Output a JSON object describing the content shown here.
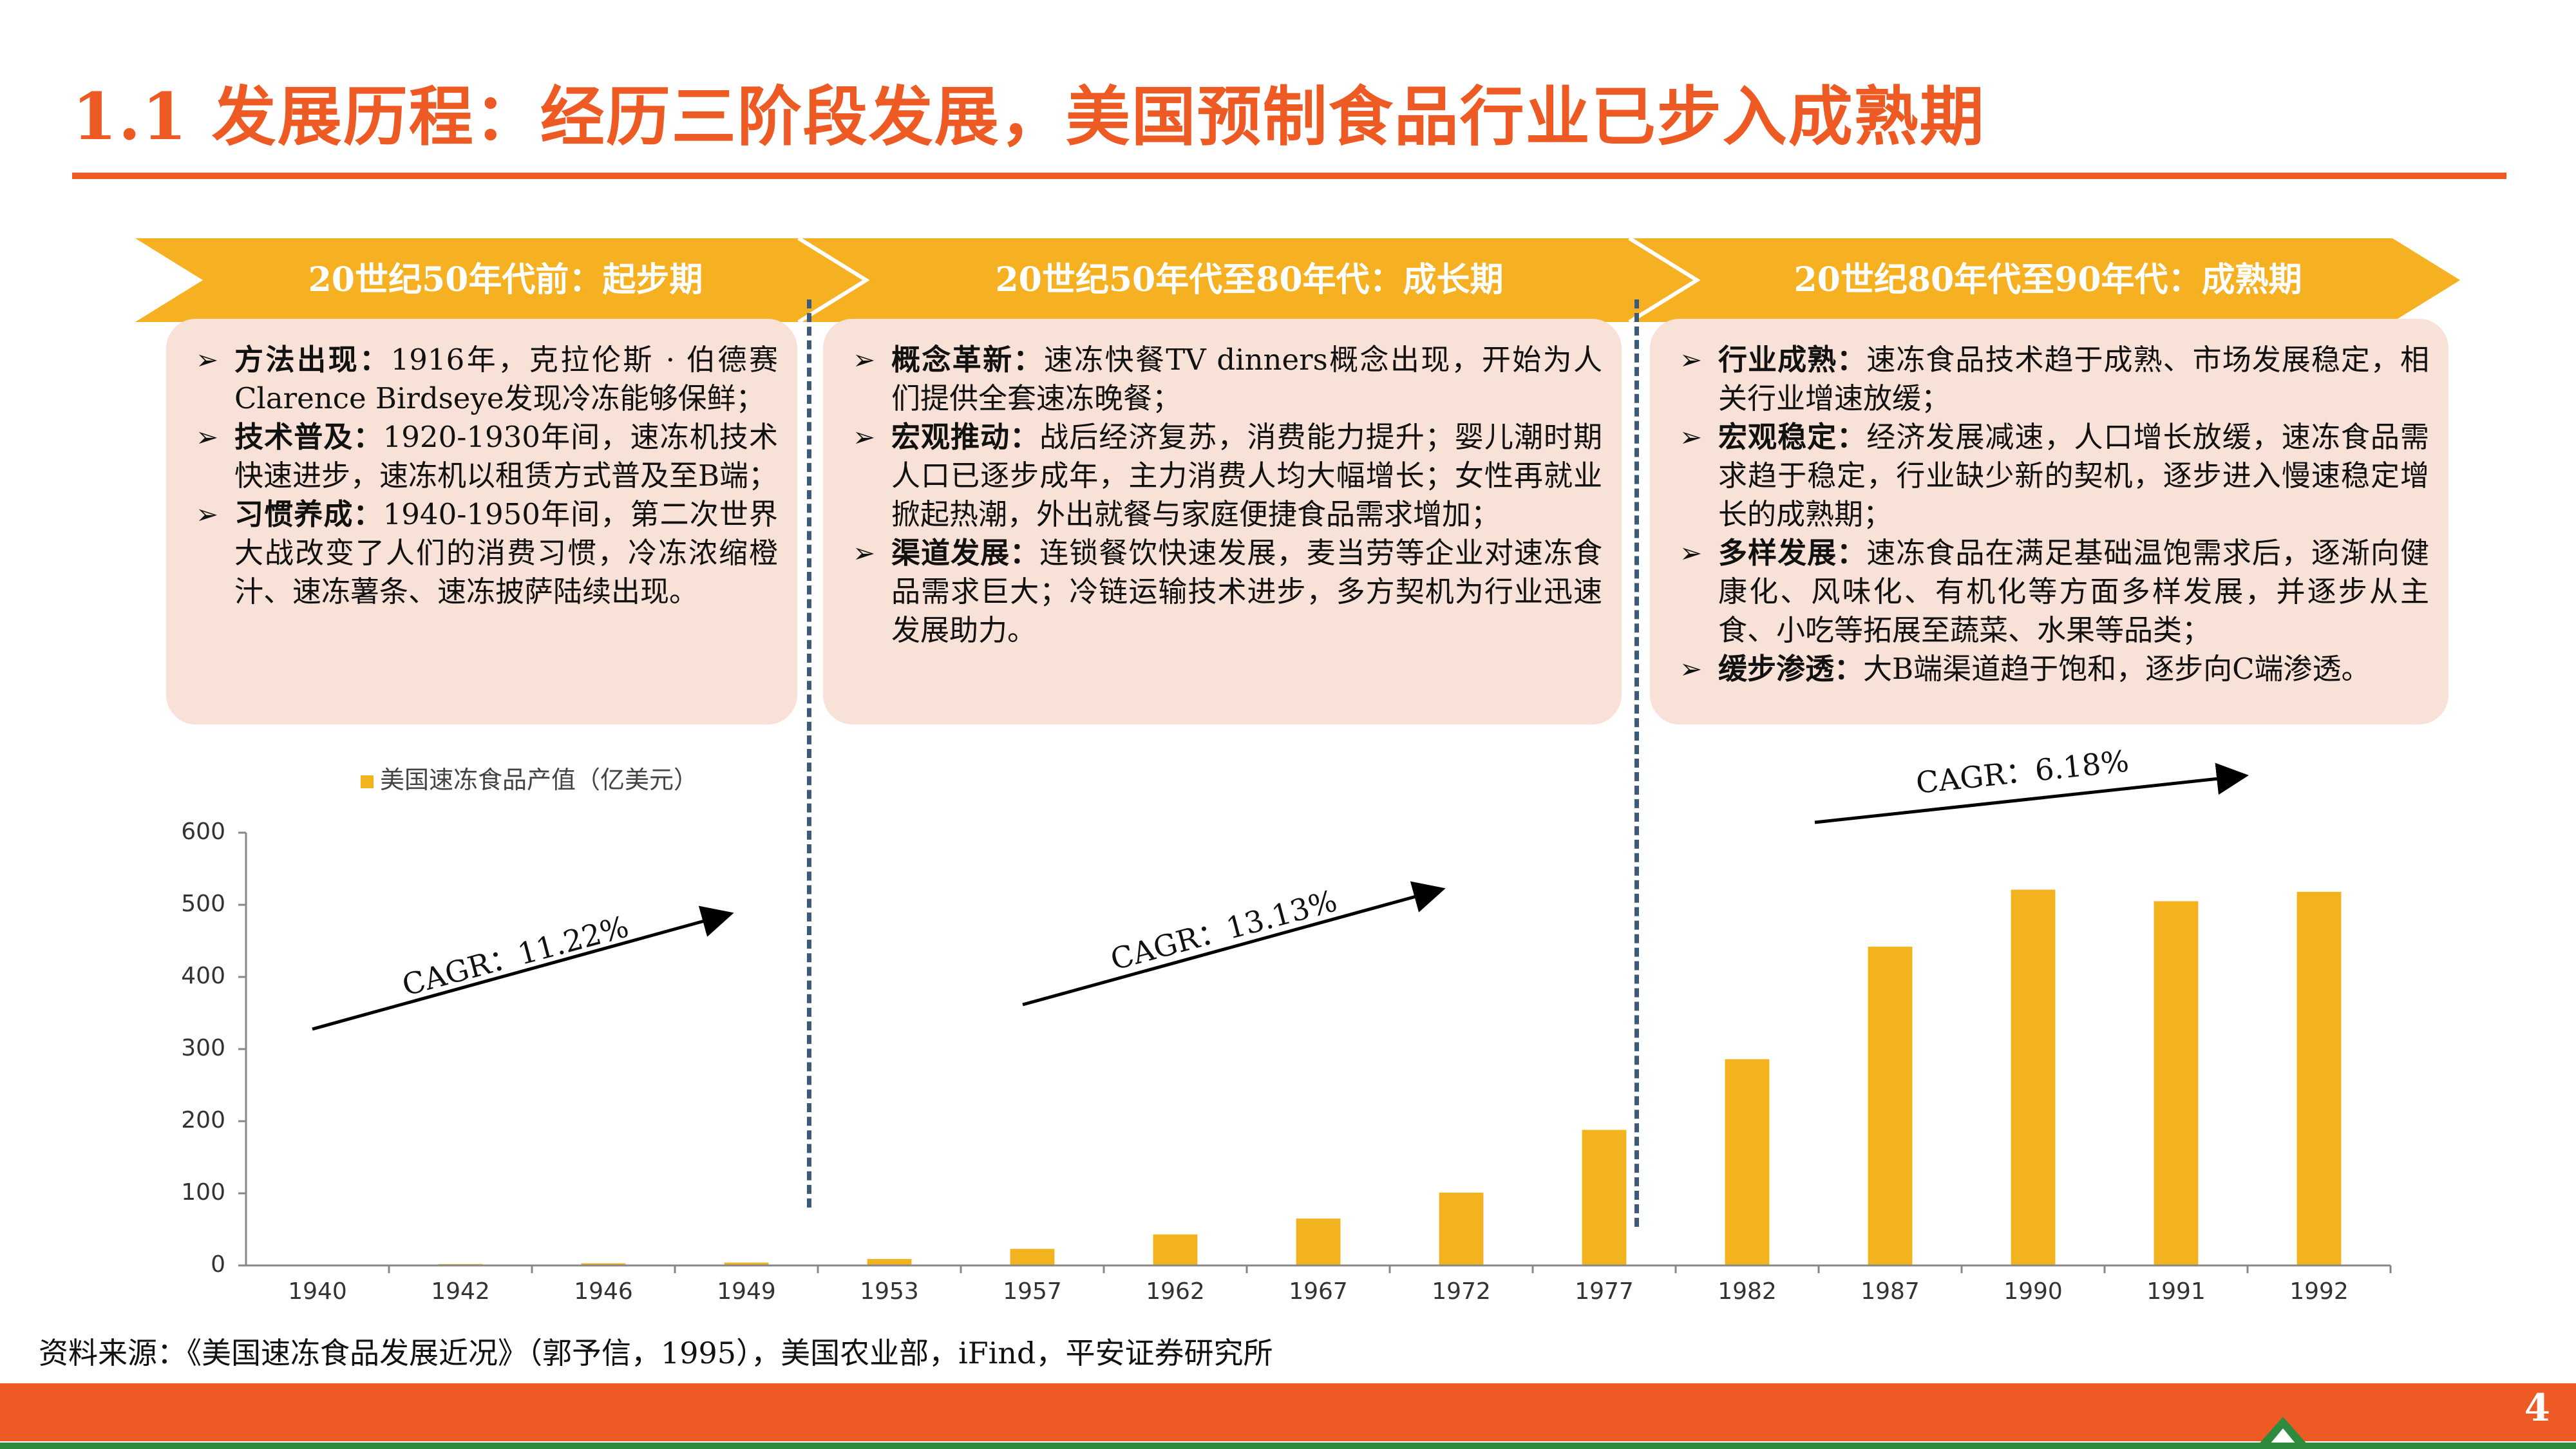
{
  "header": {
    "title": "1.1 发展历程：经历三阶段发展，美国预制食品行业已步入成熟期"
  },
  "stages": [
    {
      "label": "20世纪50年代前：起步期",
      "items": [
        {
          "head": "方法出现：",
          "text": "1916年，克拉伦斯 · 伯德赛Clarence Birdseye发现冷冻能够保鲜；"
        },
        {
          "head": "技术普及：",
          "text": "1920-1930年间，速冻机技术快速进步，速冻机以租赁方式普及至B端；"
        },
        {
          "head": "习惯养成：",
          "text": "1940-1950年间，第二次世界大战改变了人们的消费习惯，冷冻浓缩橙汁、速冻薯条、速冻披萨陆续出现。"
        }
      ]
    },
    {
      "label": "20世纪50年代至80年代：成长期",
      "items": [
        {
          "head": "概念革新：",
          "text": "速冻快餐TV dinners概念出现，开始为人们提供全套速冻晚餐；"
        },
        {
          "head": "宏观推动：",
          "text": "战后经济复苏，消费能力提升；婴儿潮时期人口已逐步成年，主力消费人均大幅增长；女性再就业掀起热潮，外出就餐与家庭便捷食品需求增加；"
        },
        {
          "head": "渠道发展：",
          "text": "连锁餐饮快速发展，麦当劳等企业对速冻食品需求巨大；冷链运输技术进步，多方契机为行业迅速发展助力。"
        }
      ]
    },
    {
      "label": "20世纪80年代至90年代：成熟期",
      "items": [
        {
          "head": "行业成熟：",
          "text": "速冻食品技术趋于成熟、市场发展稳定，相关行业增速放缓；"
        },
        {
          "head": "宏观稳定：",
          "text": "经济发展减速，人口增长放缓，速冻食品需求趋于稳定，行业缺少新的契机，逐步进入慢速稳定增长的成熟期；"
        },
        {
          "head": "多样发展：",
          "text": "速冻食品在满足基础温饱需求后，逐渐向健康化、风味化、有机化等方面多样发展，并逐步从主食、小吃等拓展至蔬菜、水果等品类；"
        },
        {
          "head": "缓步渗透：",
          "text": "大B端渠道趋于饱和，逐步向C端渗透。"
        }
      ]
    }
  ],
  "chart_data": {
    "type": "bar",
    "categories": [
      "1940",
      "1942",
      "1946",
      "1949",
      "1953",
      "1957",
      "1962",
      "1967",
      "1972",
      "1977",
      "1982",
      "1987",
      "1990",
      "1991",
      "1992"
    ],
    "series": [
      {
        "name": "美国速冻食品产值（亿美元）",
        "values": [
          1,
          2,
          3,
          4,
          9,
          23,
          43,
          65,
          101,
          188,
          286,
          442,
          521,
          505,
          518
        ]
      }
    ],
    "ylim": [
      0,
      600
    ],
    "yticks": [
      0,
      100,
      200,
      300,
      400,
      500,
      600
    ],
    "legend_position": "top-left",
    "annotations": [
      "CAGR：11.22%",
      "CAGR：13.13%",
      "CAGR：6.18%"
    ],
    "color": "#F2B31F"
  },
  "footer": {
    "source": "资料来源：《美国速冻食品发展近况》（郭予信，1995），美国农业部，iFind，平安证券研究所",
    "page": "4"
  },
  "colors": {
    "accent": "#EE5A24",
    "stage_bar": "#F5B121",
    "panel_bg": "#F8E1D6",
    "green": "#2E8B3E"
  }
}
